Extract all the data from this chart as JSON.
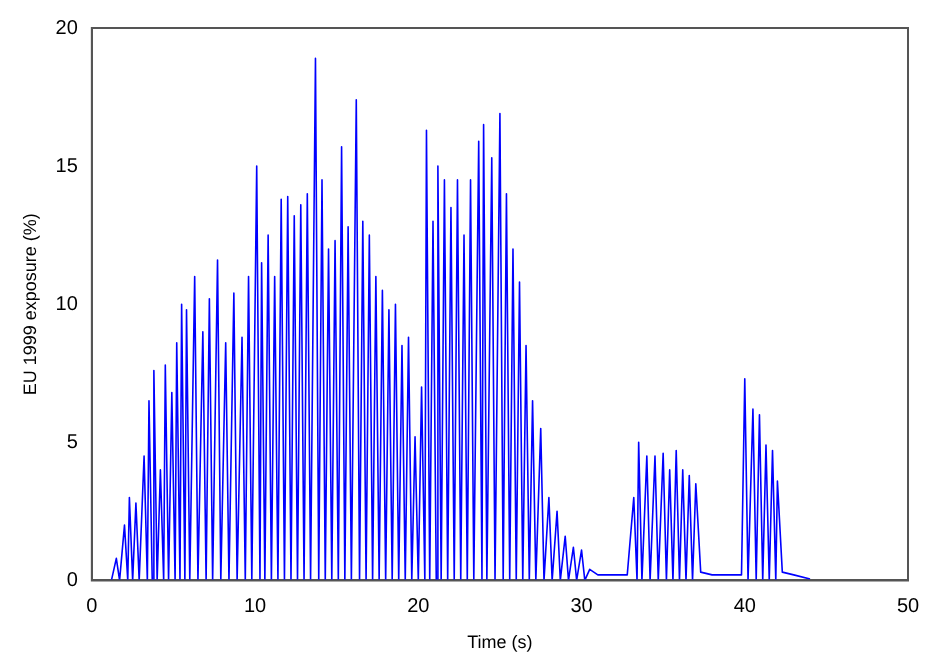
{
  "chart_data": {
    "type": "line",
    "xlabel": "Time (s)",
    "ylabel": "EU 1999 exposure (%)",
    "xlim": [
      0,
      50
    ],
    "xticks": [
      0,
      10,
      20,
      30,
      40,
      50
    ],
    "ylim": [
      0,
      20
    ],
    "yticks": [
      0,
      5,
      10,
      15,
      20
    ],
    "grid": false,
    "legend": false,
    "marker": "none",
    "line_style": "solid",
    "series": [
      {
        "color": "#0000ff",
        "x": [
          1.2,
          1.5,
          1.7,
          2,
          2.2,
          2.3,
          2.5,
          2.7,
          2.9,
          3.2,
          3.4,
          3.5,
          3.7,
          3.8,
          4,
          4.2,
          4.4,
          4.5,
          4.7,
          4.9,
          5.1,
          5.2,
          5.4,
          5.5,
          5.7,
          5.8,
          6,
          6.3,
          6.5,
          6.8,
          7,
          7.2,
          7.4,
          7.7,
          7.9,
          8.2,
          8.4,
          8.7,
          8.9,
          9.2,
          9.4,
          9.6,
          9.8,
          10.1,
          10.3,
          10.4,
          10.6,
          10.8,
          11,
          11.2,
          11.4,
          11.6,
          11.8,
          12,
          12.2,
          12.4,
          12.6,
          12.8,
          13,
          13.2,
          13.4,
          13.7,
          13.9,
          14.1,
          14.3,
          14.5,
          14.7,
          14.9,
          15.1,
          15.3,
          15.5,
          15.7,
          15.9,
          16.2,
          16.4,
          16.6,
          16.8,
          17,
          17.2,
          17.4,
          17.6,
          17.8,
          18,
          18.2,
          18.4,
          18.6,
          18.8,
          19,
          19.2,
          19.4,
          19.6,
          19.8,
          20,
          20.2,
          20.4,
          20.5,
          20.7,
          20.9,
          21.1,
          21.2,
          21.4,
          21.6,
          21.8,
          22,
          22.2,
          22.4,
          22.6,
          22.8,
          23,
          23.2,
          23.4,
          23.7,
          23.9,
          24,
          24.2,
          24.5,
          24.7,
          25,
          25.2,
          25.4,
          25.6,
          25.8,
          26,
          26.2,
          26.4,
          26.6,
          26.8,
          27,
          27.2,
          27.5,
          27.7,
          28,
          28.2,
          28.5,
          28.7,
          29,
          29.2,
          29.5,
          29.7,
          30,
          30.2,
          30.5,
          31,
          32,
          32.8,
          33.2,
          33.4,
          33.5,
          33.7,
          34,
          34.2,
          34.5,
          34.7,
          35,
          35.2,
          35.4,
          35.6,
          35.8,
          36,
          36.2,
          36.4,
          36.6,
          36.8,
          37,
          37.3,
          38,
          39,
          39.8,
          40,
          40.2,
          40.5,
          40.7,
          40.9,
          41.1,
          41.3,
          41.5,
          41.7,
          41.9,
          42,
          42.3,
          43,
          44
        ],
        "values": [
          0,
          0.8,
          0,
          2,
          0,
          3,
          0,
          2.8,
          0,
          4.5,
          0,
          6.5,
          0,
          7.6,
          0,
          4,
          0,
          7.8,
          0,
          6.8,
          0,
          8.6,
          0,
          10,
          0,
          9.8,
          0,
          11,
          0,
          9,
          0,
          10.2,
          0,
          11.6,
          0,
          8.6,
          0,
          10.4,
          0,
          8.8,
          0,
          11,
          0,
          15,
          0,
          11.5,
          0,
          12.5,
          0,
          11,
          0,
          13.8,
          0,
          13.9,
          0,
          13.2,
          0,
          13.6,
          0,
          14,
          0,
          18.9,
          0,
          14.5,
          0,
          12,
          0,
          12.3,
          0,
          15.7,
          0,
          12.8,
          0,
          17.4,
          0,
          13,
          0,
          12.5,
          0,
          11,
          0,
          10.5,
          0,
          9.8,
          0,
          10,
          0,
          8.5,
          0,
          8.8,
          0,
          5.2,
          0,
          7,
          0,
          16.3,
          0,
          13,
          0,
          15,
          0,
          14.5,
          0,
          13.5,
          0,
          14.5,
          0,
          12.5,
          0,
          14.5,
          0,
          15.9,
          0,
          16.5,
          0,
          15.3,
          0,
          16.9,
          0,
          14,
          0,
          12,
          0,
          10.8,
          0,
          8.5,
          0,
          6.5,
          0,
          5.5,
          0,
          3,
          0,
          2.5,
          0,
          1.6,
          0,
          1.2,
          0,
          1.1,
          0,
          0.4,
          0.2,
          0.2,
          0.2,
          3,
          0,
          5,
          0,
          4.5,
          0,
          4.5,
          0,
          4.6,
          0,
          4,
          0,
          4.7,
          0,
          4,
          0,
          3.8,
          0,
          3.5,
          0.3,
          0.2,
          0.2,
          0.2,
          7.3,
          0,
          6.2,
          0,
          6,
          0,
          4.9,
          0,
          4.7,
          0,
          3.6,
          0.3,
          0.2,
          0.05
        ]
      }
    ]
  }
}
